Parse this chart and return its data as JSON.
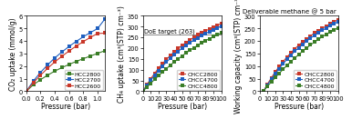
{
  "plot1": {
    "xlabel": "Pressure (bar)",
    "ylabel": "CO₂ uptake (mmol/g)",
    "xlim": [
      0,
      1.1
    ],
    "ylim": [
      0,
      6
    ],
    "xticks": [
      0.0,
      0.2,
      0.4,
      0.6,
      0.8,
      1.0
    ],
    "yticks": [
      0,
      1,
      2,
      3,
      4,
      5,
      6
    ],
    "series": [
      {
        "label": "HCC2800",
        "color": "#3a7d27",
        "marker": "s",
        "x": [
          0.0,
          0.1,
          0.2,
          0.3,
          0.4,
          0.5,
          0.6,
          0.7,
          0.8,
          0.9,
          1.0,
          1.1
        ],
        "y": [
          0.0,
          0.52,
          0.92,
          1.28,
          1.6,
          1.88,
          2.13,
          2.37,
          2.59,
          2.8,
          3.01,
          3.22
        ]
      },
      {
        "label": "HCC2700",
        "color": "#1f5fbf",
        "marker": "s",
        "x": [
          0.0,
          0.1,
          0.2,
          0.3,
          0.4,
          0.5,
          0.6,
          0.7,
          0.8,
          0.9,
          1.0,
          1.1
        ],
        "y": [
          0.0,
          0.82,
          1.5,
          2.1,
          2.65,
          3.12,
          3.56,
          3.96,
          4.33,
          4.67,
          4.98,
          5.72
        ]
      },
      {
        "label": "HCC2600",
        "color": "#c8382a",
        "marker": "s",
        "x": [
          0.0,
          0.1,
          0.2,
          0.3,
          0.4,
          0.5,
          0.6,
          0.7,
          0.8,
          0.9,
          1.0,
          1.1
        ],
        "y": [
          0.0,
          0.68,
          1.28,
          1.83,
          2.33,
          2.78,
          3.2,
          3.59,
          3.95,
          4.28,
          4.59,
          4.62
        ]
      }
    ]
  },
  "plot2": {
    "xlabel": "Pressure (bar)",
    "ylabel": "CH₄ uptake (cm³(STP) cm⁻³)",
    "xlim": [
      0,
      100
    ],
    "ylim": [
      0,
      350
    ],
    "xticks": [
      0,
      10,
      20,
      30,
      40,
      50,
      60,
      70,
      80,
      90,
      100
    ],
    "yticks": [
      0,
      50,
      100,
      150,
      200,
      250,
      300,
      350
    ],
    "doe_target": 263,
    "doe_label": "DoE target (263)",
    "series": [
      {
        "label": "CHCC2800",
        "color": "#c8382a",
        "marker": "s",
        "x": [
          0,
          5,
          10,
          15,
          20,
          25,
          30,
          35,
          40,
          45,
          50,
          55,
          60,
          65,
          70,
          75,
          80,
          85,
          90,
          95,
          100
        ],
        "y": [
          0,
          30,
          58,
          83,
          107,
          128,
          148,
          166,
          183,
          199,
          213,
          226,
          238,
          250,
          261,
          271,
          280,
          289,
          298,
          306,
          314
        ]
      },
      {
        "label": "CHCC4700",
        "color": "#1f5fbf",
        "marker": "s",
        "x": [
          0,
          5,
          10,
          15,
          20,
          25,
          30,
          35,
          40,
          45,
          50,
          55,
          60,
          65,
          70,
          75,
          80,
          85,
          90,
          95,
          100
        ],
        "y": [
          0,
          26,
          51,
          74,
          96,
          116,
          135,
          153,
          169,
          185,
          199,
          212,
          225,
          237,
          248,
          258,
          268,
          277,
          286,
          294,
          302
        ]
      },
      {
        "label": "CHCC4800",
        "color": "#3a7d27",
        "marker": "s",
        "x": [
          0,
          5,
          10,
          15,
          20,
          25,
          30,
          35,
          40,
          45,
          50,
          55,
          60,
          65,
          70,
          75,
          80,
          85,
          90,
          95,
          100
        ],
        "y": [
          0,
          18,
          37,
          55,
          72,
          89,
          105,
          121,
          136,
          150,
          164,
          177,
          190,
          202,
          213,
          224,
          235,
          244,
          253,
          262,
          270
        ]
      }
    ]
  },
  "plot3": {
    "title": "Deliverable methane @ 5 bar",
    "xlabel": "Pressure (bar)",
    "ylabel": "Working capacity (cm³(STP) cm⁻³)",
    "xlim": [
      0,
      100
    ],
    "ylim": [
      0,
      300
    ],
    "xticks": [
      0,
      10,
      20,
      30,
      40,
      50,
      60,
      70,
      80,
      90,
      100
    ],
    "yticks": [
      0,
      50,
      100,
      150,
      200,
      250,
      300
    ],
    "series": [
      {
        "label": "CHCC2800",
        "color": "#c8382a",
        "marker": "s",
        "x": [
          5,
          10,
          15,
          20,
          25,
          30,
          35,
          40,
          45,
          50,
          55,
          60,
          65,
          70,
          75,
          80,
          85,
          90,
          95,
          100
        ],
        "y": [
          0,
          28,
          53,
          77,
          98,
          118,
          136,
          153,
          169,
          183,
          196,
          208,
          220,
          231,
          241,
          250,
          259,
          268,
          276,
          284
        ]
      },
      {
        "label": "CHCC4700",
        "color": "#1f5fbf",
        "marker": "s",
        "x": [
          5,
          10,
          15,
          20,
          25,
          30,
          35,
          40,
          45,
          50,
          55,
          60,
          65,
          70,
          75,
          80,
          85,
          90,
          95,
          100
        ],
        "y": [
          0,
          25,
          48,
          70,
          90,
          109,
          127,
          143,
          159,
          173,
          186,
          199,
          211,
          222,
          232,
          242,
          251,
          260,
          268,
          276
        ]
      },
      {
        "label": "CHCC4800",
        "color": "#3a7d27",
        "marker": "s",
        "x": [
          5,
          10,
          15,
          20,
          25,
          30,
          35,
          40,
          45,
          50,
          55,
          60,
          65,
          70,
          75,
          80,
          85,
          90,
          95,
          100
        ],
        "y": [
          0,
          19,
          37,
          54,
          71,
          87,
          103,
          118,
          132,
          146,
          159,
          172,
          184,
          195,
          206,
          217,
          226,
          235,
          244,
          252
        ]
      }
    ]
  },
  "bg_color": "#ffffff",
  "marker_size": 2.2,
  "line_width": 0.8,
  "font_size": 5.5,
  "legend_font_size": 4.5,
  "tick_font_size": 4.8
}
